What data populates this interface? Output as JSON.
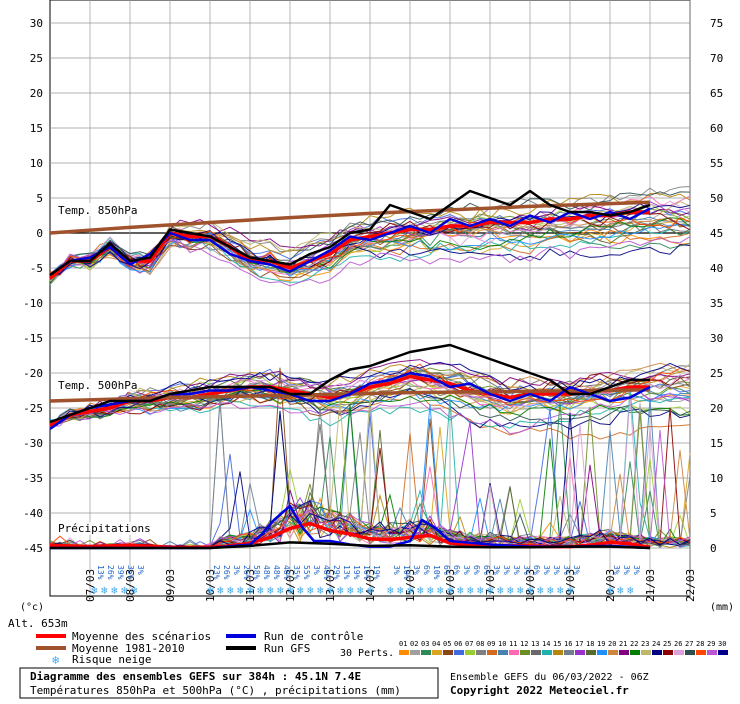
{
  "chart_data": {
    "type": "line",
    "title": "Diagramme des ensembles GEFS sur 384h : 45.1N 7.4E",
    "subtitle": "Températures 850hPa et 500hPa (°C) , précipitations (mm)",
    "left_axis": {
      "unit": "(°c)",
      "ticks": [
        "30",
        "25",
        "20",
        "15",
        "10",
        "5",
        "0",
        "-5",
        "-10",
        "-15",
        "-20",
        "-25",
        "-30",
        "-35",
        "-40",
        "-45"
      ],
      "ylim": [
        -45,
        30
      ]
    },
    "right_axis": {
      "unit": "(mm)",
      "ticks": [
        "75",
        "70",
        "65",
        "60",
        "55",
        "50",
        "45",
        "40",
        "35",
        "30",
        "25",
        "20",
        "15",
        "10",
        "5",
        "0"
      ],
      "ylim": [
        0,
        75
      ]
    },
    "x_dates": [
      "07/03",
      "08/03",
      "09/03",
      "10/03",
      "11/03",
      "12/03",
      "13/03",
      "14/03",
      "15/03",
      "16/03",
      "17/03",
      "18/03",
      "19/03",
      "20/03",
      "21/03",
      "22/03"
    ],
    "altitude": "Alt. 653m",
    "panel_labels": {
      "t850": "Temp. 850hPa",
      "t500": "Temp. 500hPa",
      "precip": "Précipitations"
    },
    "snow_risk": {
      "icon": "snowflake-icon",
      "entries": [
        {
          "day": 6.5,
          "label": "3%"
        },
        {
          "day": 1.1,
          "label": "13%"
        },
        {
          "day": 1.35,
          "label": "26%"
        },
        {
          "day": 1.6,
          "label": "39%"
        },
        {
          "day": 1.85,
          "label": "35%"
        },
        {
          "day": 2.1,
          "label": "3%"
        },
        {
          "day": 4.0,
          "label": "23%"
        },
        {
          "day": 4.25,
          "label": "26%"
        },
        {
          "day": 4.5,
          "label": "3%"
        },
        {
          "day": 4.75,
          "label": "26%"
        },
        {
          "day": 5.0,
          "label": "58%"
        },
        {
          "day": 5.25,
          "label": "48%"
        },
        {
          "day": 5.5,
          "label": "48%"
        },
        {
          "day": 5.75,
          "label": "48%"
        },
        {
          "day": 6.0,
          "label": "35%"
        },
        {
          "day": 6.25,
          "label": "55%"
        },
        {
          "day": 6.75,
          "label": "48%"
        },
        {
          "day": 7.0,
          "label": "29%"
        },
        {
          "day": 7.25,
          "label": "13%"
        },
        {
          "day": 7.5,
          "label": "19%"
        },
        {
          "day": 7.75,
          "label": "16%"
        },
        {
          "day": 8.0,
          "label": "19%"
        },
        {
          "day": 8.5,
          "label": "3%"
        },
        {
          "day": 8.75,
          "label": "10%"
        },
        {
          "day": 9.0,
          "label": "3%"
        },
        {
          "day": 9.25,
          "label": "6%"
        },
        {
          "day": 9.5,
          "label": "10%"
        },
        {
          "day": 9.75,
          "label": "6%"
        },
        {
          "day": 10.0,
          "label": "6%"
        },
        {
          "day": 10.25,
          "label": "3%"
        },
        {
          "day": 10.5,
          "label": "6%"
        },
        {
          "day": 10.75,
          "label": "6%"
        },
        {
          "day": 11.0,
          "label": "3%"
        },
        {
          "day": 11.25,
          "label": "3%"
        },
        {
          "day": 11.5,
          "label": "3%"
        },
        {
          "day": 11.75,
          "label": "3%"
        },
        {
          "day": 12.0,
          "label": "6%"
        },
        {
          "day": 12.25,
          "label": "3%"
        },
        {
          "day": 12.5,
          "label": "3%"
        },
        {
          "day": 12.75,
          "label": "3%"
        },
        {
          "day": 13.0,
          "label": "3%"
        },
        {
          "day": 14.0,
          "label": "3%"
        },
        {
          "day": 14.25,
          "label": "3%"
        },
        {
          "day": 14.5,
          "label": "3%"
        }
      ]
    },
    "series": [
      {
        "name": "Moyenne des scénarios",
        "panel": "t850",
        "color": "#ff0000",
        "x": [
          0,
          0.5,
          1,
          1.5,
          2,
          2.5,
          3,
          3.5,
          4,
          4.5,
          5,
          5.5,
          6,
          6.5,
          7,
          7.5,
          8,
          8.5,
          9,
          9.5,
          10,
          10.5,
          11,
          11.5,
          12,
          12.5,
          13,
          13.5,
          14,
          14.5,
          15
        ],
        "values": [
          -6.5,
          -4,
          -4,
          -2,
          -4,
          -4,
          0,
          -0.5,
          -0.5,
          -2,
          -4,
          -4,
          -5,
          -4,
          -3,
          -1,
          -0.5,
          0,
          0.5,
          0.5,
          1,
          1,
          1.5,
          1.5,
          1.5,
          2,
          2,
          2.5,
          2.5,
          3,
          3
        ]
      },
      {
        "name": "Moyenne 1981-2010",
        "panel": "t850",
        "color": "#a0522d",
        "x": [
          0,
          2,
          4,
          6,
          8,
          10,
          12,
          14,
          15
        ],
        "values": [
          0,
          0.8,
          1.5,
          2.2,
          2.8,
          3.3,
          3.8,
          4.2,
          4.4
        ]
      },
      {
        "name": "Run de contrôle",
        "panel": "t850",
        "color": "#0000dd",
        "x": [
          0,
          0.5,
          1,
          1.5,
          2,
          2.5,
          3,
          3.5,
          4,
          4.5,
          5,
          5.5,
          6,
          6.5,
          7,
          7.5,
          8,
          8.5,
          9,
          9.5,
          10,
          10.5,
          11,
          11.5,
          12,
          12.5,
          13,
          13.5,
          14,
          14.5,
          15
        ],
        "values": [
          -6,
          -4,
          -3.5,
          -2,
          -4.5,
          -3,
          0,
          -1,
          -1,
          -3,
          -4,
          -4.5,
          -5.5,
          -4,
          -2.5,
          -0.5,
          -1,
          0,
          1,
          0,
          2,
          1,
          2,
          1,
          2.5,
          1.5,
          3,
          2,
          3,
          2,
          3.5
        ]
      },
      {
        "name": "Run GFS",
        "panel": "t850",
        "color": "#000000",
        "x": [
          0,
          0.5,
          1,
          1.5,
          2,
          2.5,
          3,
          3.5,
          4,
          4.5,
          5,
          5.5,
          6,
          6.5,
          7,
          7.5,
          8,
          8.5,
          9,
          9.5,
          10,
          10.5,
          11,
          11.5,
          12,
          12.5,
          13,
          13.5,
          14,
          14.5,
          15
        ],
        "values": [
          -6,
          -4,
          -4,
          -1.5,
          -4,
          -3.5,
          0.5,
          0,
          -0.5,
          -2,
          -3.5,
          -4,
          -4.5,
          -3,
          -2,
          0,
          0.5,
          4,
          3,
          2,
          4,
          6,
          5,
          4,
          6,
          4,
          3,
          3,
          2.5,
          3,
          4
        ]
      },
      {
        "name": "Moyenne des scénarios",
        "panel": "t500",
        "color": "#ff0000",
        "x": [
          0,
          0.5,
          1,
          1.5,
          2,
          2.5,
          3,
          3.5,
          4,
          4.5,
          5,
          5.5,
          6,
          6.5,
          7,
          7.5,
          8,
          8.5,
          9,
          9.5,
          10,
          10.5,
          11,
          11.5,
          12,
          12.5,
          13,
          13.5,
          14,
          14.5,
          15
        ],
        "values": [
          -27.5,
          -26,
          -25.5,
          -25,
          -24,
          -24,
          -23.5,
          -23.5,
          -23,
          -22.5,
          -22,
          -22,
          -22.5,
          -23,
          -23.5,
          -23,
          -22,
          -21.5,
          -20.5,
          -21,
          -21.5,
          -22.5,
          -23,
          -23.5,
          -23,
          -23,
          -23,
          -22.5,
          -22.5,
          -22,
          -22
        ]
      },
      {
        "name": "Moyenne 1981-2010",
        "panel": "t500",
        "color": "#a0522d",
        "x": [
          0,
          3,
          6,
          9,
          12,
          15
        ],
        "values": [
          -24,
          -23.5,
          -23.2,
          -22.8,
          -22.6,
          -22.4
        ]
      },
      {
        "name": "Run de contrôle",
        "panel": "t500",
        "color": "#0000dd",
        "x": [
          0,
          0.5,
          1,
          1.5,
          2,
          2.5,
          3,
          3.5,
          4,
          4.5,
          5,
          5.5,
          6,
          6.5,
          7,
          7.5,
          8,
          8.5,
          9,
          9.5,
          10,
          10.5,
          11,
          11.5,
          12,
          12.5,
          13,
          13.5,
          14,
          14.5,
          15
        ],
        "values": [
          -28,
          -26,
          -25,
          -24.5,
          -24,
          -24,
          -23,
          -23,
          -22.5,
          -22.5,
          -22,
          -22.5,
          -23,
          -24,
          -24,
          -23,
          -21.5,
          -21,
          -20,
          -20.5,
          -22,
          -21.5,
          -23,
          -24,
          -23,
          -24,
          -22,
          -23,
          -24,
          -23.5,
          -22
        ]
      },
      {
        "name": "Run GFS",
        "panel": "t500",
        "color": "#000000",
        "x": [
          0,
          0.5,
          1,
          1.5,
          2,
          2.5,
          3,
          3.5,
          4,
          4.5,
          5,
          5.5,
          6,
          6.5,
          7,
          7.5,
          8,
          8.5,
          9,
          9.5,
          10,
          10.5,
          11,
          11.5,
          12,
          12.5,
          13,
          13.5,
          14,
          14.5,
          15
        ],
        "values": [
          -27,
          -26,
          -25,
          -24,
          -24,
          -24,
          -23,
          -22.5,
          -22,
          -22,
          -22,
          -22,
          -23,
          -23,
          -21,
          -19.5,
          -19,
          -18,
          -17,
          -16.5,
          -16,
          -17,
          -18,
          -19,
          -20,
          -21,
          -23,
          -23,
          -22,
          -21,
          -21
        ]
      },
      {
        "name": "Moyenne des scénarios",
        "panel": "precip",
        "color": "#ff0000",
        "x": [
          0,
          1,
          2,
          3,
          4,
          4.5,
          5,
          5.5,
          6,
          6.5,
          7,
          7.5,
          8,
          8.5,
          9,
          9.5,
          10,
          10.5,
          11,
          11.5,
          12,
          12.5,
          13,
          13.5,
          14,
          14.5,
          15
        ],
        "values": [
          0.4,
          0.2,
          0.4,
          0.1,
          0.1,
          0.3,
          0.7,
          1.5,
          2.8,
          3.5,
          2.5,
          2,
          1.3,
          1.2,
          1.5,
          1.8,
          0.7,
          0.5,
          0.4,
          0.3,
          0.3,
          0.2,
          0.2,
          0.4,
          0.8,
          0.6,
          0.1
        ]
      },
      {
        "name": "Run de contrôle",
        "panel": "precip",
        "color": "#0000dd",
        "x": [
          0,
          1,
          2,
          3,
          4,
          5,
          5.3,
          5.6,
          6,
          6.3,
          6.6,
          7,
          7.5,
          8,
          8.5,
          9,
          9.3,
          9.6,
          10,
          11,
          12,
          13,
          14,
          15
        ],
        "values": [
          0,
          0,
          0,
          0,
          0,
          0.5,
          2,
          4,
          6,
          3,
          1,
          1,
          0.5,
          0.2,
          0.2,
          1,
          4,
          3,
          1,
          0.5,
          0.2,
          0.2,
          0.3,
          0
        ]
      },
      {
        "name": "Run GFS",
        "panel": "precip",
        "color": "#000000",
        "x": [
          0,
          1,
          2,
          3,
          4,
          5,
          6,
          7,
          8,
          9,
          10,
          11,
          12,
          13,
          14,
          15
        ],
        "values": [
          0,
          0,
          0,
          0,
          0,
          0.3,
          0.8,
          0.6,
          0.3,
          0.4,
          0.2,
          0.1,
          0.1,
          0.2,
          0.2,
          0
        ]
      }
    ],
    "legend": {
      "items": [
        {
          "label": "Moyenne des scénarios",
          "color": "#ff0000"
        },
        {
          "label": "Moyenne 1981-2010",
          "color": "#a0522d"
        },
        {
          "label": "Risque neige",
          "icon": "snowflake-icon"
        },
        {
          "label": "Run de contrôle",
          "color": "#0000dd"
        },
        {
          "label": "Run GFS",
          "color": "#000000"
        }
      ],
      "perts_label": "30 Perts.",
      "pert_numbers": [
        "01",
        "02",
        "03",
        "04",
        "05",
        "06",
        "07",
        "08",
        "09",
        "10",
        "11",
        "12",
        "13",
        "14",
        "15",
        "16",
        "17",
        "18",
        "19",
        "20",
        "21",
        "22",
        "23",
        "24",
        "25",
        "26",
        "27",
        "28",
        "29",
        "30"
      ],
      "pert_colors": [
        "#ff8c00",
        "#a0a0a0",
        "#2e8b57",
        "#daa520",
        "#8b4513",
        "#4169e1",
        "#9acd32",
        "#808080",
        "#d2691e",
        "#4682b4",
        "#ff69b4",
        "#6b8e23",
        "#696969",
        "#20b2aa",
        "#b8860b",
        "#708090",
        "#9932cc",
        "#556b2f",
        "#1e90ff",
        "#cd853f",
        "#800080",
        "#008000",
        "#bdb76b",
        "#000080",
        "#8b0000",
        "#dda0dd",
        "#2f4f4f",
        "#ff4500",
        "#ba55d3",
        "#00008b"
      ]
    },
    "footer": {
      "line1": "Diagramme des ensembles GEFS sur 384h : 45.1N 7.4E",
      "line2": "Températures 850hPa et 500hPa (°C) , précipitations (mm)",
      "run_info": "Ensemble GEFS du 06/03/2022 - 06Z",
      "copyright": "Copyright 2022 Meteociel.fr"
    }
  }
}
